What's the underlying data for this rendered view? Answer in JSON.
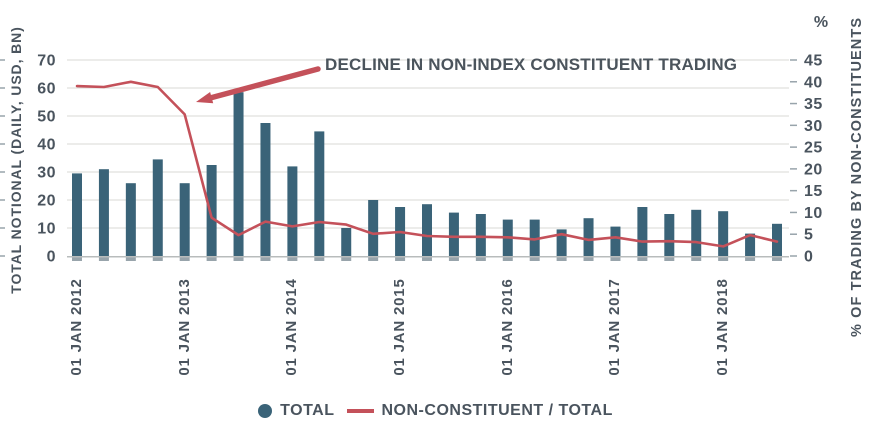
{
  "chart_data": {
    "type": "bar+line dual-axis",
    "n_points": 27,
    "series": [
      {
        "name": "TOTAL",
        "type": "bar",
        "axis": "left",
        "values": [
          29.5,
          31,
          26,
          34.5,
          26,
          32.5,
          58.5,
          47.5,
          32,
          44.5,
          10,
          20,
          17.5,
          18.5,
          15.5,
          15,
          13,
          13,
          9.5,
          13.5,
          10.5,
          17.5,
          15,
          16.5,
          16,
          8,
          11.5
        ]
      },
      {
        "name": "NON-CONSTITUENT / TOTAL",
        "type": "line",
        "axis": "right",
        "values": [
          39,
          38.8,
          40,
          38.8,
          32.5,
          8.8,
          4.8,
          7.9,
          6.8,
          7.8,
          7.2,
          5.1,
          5.5,
          4.6,
          4.4,
          4.4,
          4.3,
          3.8,
          5.0,
          3.7,
          4.3,
          3.3,
          3.4,
          3.2,
          2.2,
          4.8,
          3.3
        ]
      }
    ],
    "left_axis": {
      "title": "TOTAL NOTIONAL (DAILY, USD, BN)",
      "min": 0,
      "max": 70,
      "step": 10,
      "ticks": [
        0,
        10,
        20,
        30,
        40,
        50,
        60,
        70
      ]
    },
    "right_axis": {
      "title": "% OF TRADING BY NON-CONSTITUENTS",
      "unit_label": "%",
      "min": 0,
      "max": 45,
      "step": 5,
      "ticks": [
        0,
        5,
        10,
        15,
        20,
        25,
        30,
        35,
        40,
        45
      ]
    },
    "x_axis": {
      "tick_labels": [
        "01 JAN 2012",
        "01 JAN 2013",
        "01 JAN 2014",
        "01 JAN 2015",
        "01 JAN 2016",
        "01 JAN 2017",
        "01 JAN 2018"
      ],
      "tick_interval": 4
    },
    "annotation": {
      "text": "DECLINE IN NON-INDEX CONSTITUENT TRADING"
    },
    "legend": [
      {
        "label": "TOTAL",
        "marker": "circle",
        "color": "#3a6378"
      },
      {
        "label": "NON-CONSTITUENT / TOTAL",
        "marker": "line",
        "color": "#c4515a"
      }
    ],
    "colors": {
      "bar": "#3a6378",
      "line": "#c4515a",
      "arrow": "#c4515a",
      "text": "#4a545e",
      "grid": "#d8d8d4",
      "axis_line": "#b8bcbc",
      "tick": "#98a4ab"
    },
    "grid": "horizontal only",
    "legend_position": "bottom center"
  }
}
